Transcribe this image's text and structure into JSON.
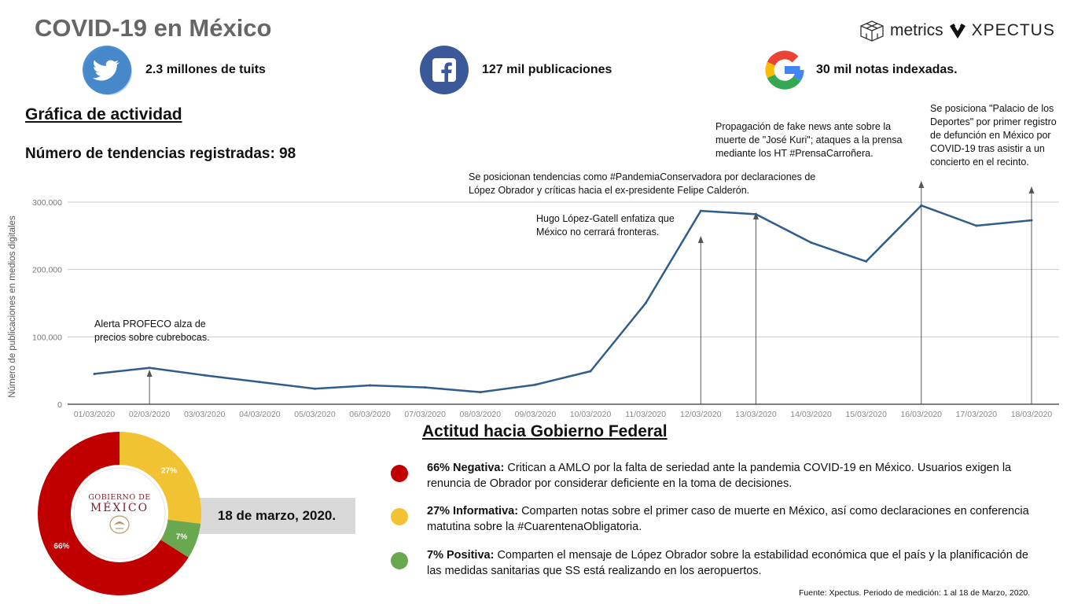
{
  "title": "COVID-19 en México",
  "brand": {
    "name1": "metrics",
    "name2": "XPECTUS"
  },
  "stats": [
    {
      "icon": "twitter-icon",
      "color": "#4a8ed0",
      "text": "2.3 millones de tuits"
    },
    {
      "icon": "facebook-icon",
      "color": "#3b5998",
      "text": "127 mil publicaciones"
    },
    {
      "icon": "google-icon",
      "color": "#ffffff",
      "text": "30 mil notas indexadas."
    }
  ],
  "activity_heading": "Gráfica de actividad",
  "trends_label": "Número de tendencias registradas: 98",
  "chart_data": [
    {
      "type": "line",
      "ylabel": "Número de publicaciones en medios digitales",
      "x": [
        "01/03/2020",
        "02/03/2020",
        "03/03/2020",
        "04/03/2020",
        "05/03/2020",
        "06/03/2020",
        "07/03/2020",
        "08/03/2020",
        "09/03/2020",
        "10/03/2020",
        "11/03/2020",
        "12/03/2020",
        "13/03/2020",
        "14/03/2020",
        "15/03/2020",
        "16/03/2020",
        "17/03/2020",
        "18/03/2020"
      ],
      "values": [
        45000,
        54000,
        43000,
        33000,
        23000,
        28000,
        25000,
        18000,
        29000,
        49000,
        150000,
        287000,
        282000,
        240000,
        212000,
        295000,
        265000,
        273000
      ],
      "ylim": [
        0,
        300000
      ],
      "yticks": [
        0,
        100000,
        200000,
        300000
      ],
      "ytick_labels": [
        "0",
        "100,000",
        "200,000",
        "300,000"
      ],
      "grid": true,
      "line_color": "#2e5d8c",
      "annotations": [
        {
          "x_index": 1,
          "text": "Alerta PROFECO alza de precios sobre cubrebocas."
        },
        {
          "x_index": 11,
          "text": "Hugo López-Gatell enfatiza que México no cerrará fronteras."
        },
        {
          "x_index": 12,
          "text": "Se posicionan tendencias como #PandemiaConservadora por declaraciones de López Obrador y críticas hacia el ex-presidente Felipe Calderón."
        },
        {
          "x_index": 15,
          "text": "Propagación de fake news ante sobre la muerte de \"José Kuri\"; ataques a la prensa mediante los HT #PrensaCarroñera."
        },
        {
          "x_index": 17,
          "text": "Se posiciona \"Palacio de los Deportes\" por primer registro de defunción en México por COVID-19 tras asistir a un concierto en el recinto."
        }
      ]
    },
    {
      "type": "pie",
      "categories": [
        "Negativa",
        "Informativa",
        "Positiva"
      ],
      "values": [
        66,
        27,
        7
      ],
      "labels": [
        "66%",
        "27%",
        "7%"
      ],
      "colors": [
        "#c00000",
        "#f1c232",
        "#6aa84f"
      ]
    }
  ],
  "attitude_heading": "Actitud hacia Gobierno Federal",
  "gov_logo": {
    "line1": "GOBIERNO DE",
    "line2": "MÉXICO"
  },
  "date_label": "18 de marzo, 2020.",
  "legend": [
    {
      "color": "#c00000",
      "bold": "66% Negativa:",
      "text": " Critican a AMLO por la falta de seriedad ante la pandemia COVID-19 en México. Usuarios exigen la renuncia de Obrador por considerar deficiente en la toma de decisiones."
    },
    {
      "color": "#f1c232",
      "bold": "27% Informativa:",
      "text": " Comparten notas sobre el primer caso de muerte en México, así como declaraciones en conferencia matutina sobre la #CuarentenaObligatoria."
    },
    {
      "color": "#6aa84f",
      "bold": "7% Positiva:",
      "text": " Comparten el mensaje de López Obrador sobre la estabilidad económica que el país y la planificación de las medidas sanitarias que SS está realizando en los aeropuertos."
    }
  ],
  "source_note": "Fuente: Xpectus.  Periodo de medición: 1 al 18 de Marzo, 2020."
}
